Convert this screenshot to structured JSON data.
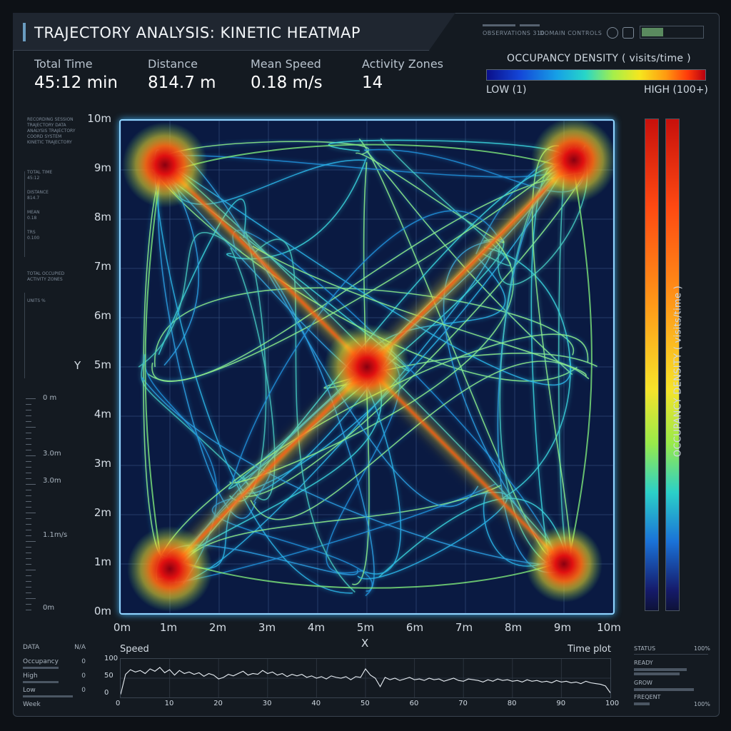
{
  "header": {
    "title": "TRAJECTORY ANALYSIS: KINETIC HEATMAP",
    "status_text_1": "OBSERVATIONS 310",
    "status_text_2": "DOMAIN CONTROLS"
  },
  "stats": [
    {
      "label": "Total Time",
      "value": "45:12 min"
    },
    {
      "label": "Distance",
      "value": "814.7 m"
    },
    {
      "label": "Mean Speed",
      "value": "0.18 m/s"
    },
    {
      "label": "Activity Zones",
      "value": "14"
    }
  ],
  "density_legend": {
    "title": "OCCUPANCY DENSITY ( visits/time )",
    "low": "LOW (1)",
    "high": "HIGH (100+)",
    "colors": [
      "#0a0f8a",
      "#16a0e6",
      "#a6ef4a",
      "#f6e61e",
      "#ff3a0a",
      "#b80010"
    ]
  },
  "side_notes": {
    "block1": [
      "RECORDING SESSION",
      "TRAJECTORY DATA",
      "ANALYSIS TRAJECTORY",
      "COORD SYSTEM",
      "KINETIC TRAJECTORY"
    ],
    "block2": [
      "TOTAL TIME",
      "45:12",
      "DISTANCE",
      "814.7",
      "MEAN",
      "0.18",
      "TRS",
      "0.100"
    ],
    "block3": [
      "TOTAL OCCUPIED",
      "ACTIVITY ZONES"
    ],
    "block4": "UNITS %",
    "ruler_labels": [
      "0 m",
      "3.0m",
      "3.0m",
      "1.1m/s",
      "0m"
    ]
  },
  "chart_data": {
    "type": "heatmap",
    "title": "",
    "xlabel": "X",
    "ylabel": "Y",
    "xlim": [
      0,
      10
    ],
    "ylim": [
      0,
      10
    ],
    "x_ticks": [
      "0m",
      "1m",
      "2m",
      "3m",
      "4m",
      "5m",
      "6m",
      "7m",
      "8m",
      "9m",
      "10m"
    ],
    "y_ticks": [
      "10m",
      "9m",
      "8m",
      "7m",
      "6m",
      "5m",
      "4m",
      "3m",
      "2m",
      "1m",
      "0m"
    ],
    "grid": true,
    "hotspots": [
      {
        "x": 0.9,
        "y": 9.1,
        "intensity": 1.0
      },
      {
        "x": 9.2,
        "y": 9.2,
        "intensity": 1.0
      },
      {
        "x": 5.0,
        "y": 5.0,
        "intensity": 1.0
      },
      {
        "x": 1.0,
        "y": 0.9,
        "intensity": 1.0
      },
      {
        "x": 9.0,
        "y": 1.0,
        "intensity": 0.9
      }
    ],
    "corridors": [
      {
        "from": [
          1.0,
          0.9
        ],
        "to": [
          9.2,
          9.2
        ],
        "intensity": 0.95
      },
      {
        "from": [
          0.9,
          9.1
        ],
        "to": [
          5.0,
          5.0
        ],
        "intensity": 0.75
      },
      {
        "from": [
          5.0,
          5.0
        ],
        "to": [
          9.0,
          1.0
        ],
        "intensity": 0.65
      }
    ],
    "colorbar": {
      "label": "OCCUPANCY DENSITY ( visits/time )"
    }
  },
  "speed_chart": {
    "label": "Speed",
    "right_label": "Time plot",
    "y_ticks": [
      "100",
      "50",
      "0"
    ],
    "x_ticks": [
      "0",
      "10",
      "20",
      "30",
      "40",
      "50",
      "60",
      "70",
      "80",
      "90",
      "100"
    ],
    "ylim": [
      0,
      100
    ],
    "xlim": [
      0,
      100
    ],
    "values": [
      8,
      60,
      72,
      66,
      70,
      62,
      74,
      68,
      78,
      64,
      72,
      58,
      70,
      62,
      66,
      60,
      64,
      55,
      62,
      58,
      48,
      52,
      60,
      56,
      62,
      68,
      58,
      62,
      60,
      70,
      62,
      66,
      58,
      62,
      54,
      60,
      56,
      60,
      52,
      56,
      50,
      54,
      48,
      56,
      52,
      50,
      54,
      46,
      54,
      52,
      74,
      58,
      50,
      28,
      52,
      46,
      50,
      44,
      48,
      52,
      46,
      48,
      44,
      50,
      46,
      48,
      42,
      46,
      50,
      44,
      42,
      48,
      46,
      44,
      40,
      46,
      42,
      48,
      44,
      46,
      42,
      44,
      40,
      46,
      42,
      44,
      40,
      42,
      38,
      44,
      40,
      42,
      38,
      40,
      36,
      42,
      38,
      36,
      34,
      30,
      12
    ]
  },
  "data_panel": {
    "header": "DATA",
    "header_right": "N/A",
    "rows": [
      {
        "label": "Occupancy",
        "value": "0"
      },
      {
        "label": "High",
        "value": "0"
      },
      {
        "label": "Low",
        "value": "0"
      }
    ],
    "footer": "Week"
  },
  "status_panel": {
    "header": "STATUS",
    "header_right": "100%",
    "items": [
      "READY",
      "GROW",
      "FREQENT"
    ],
    "footer_right": "100%"
  }
}
